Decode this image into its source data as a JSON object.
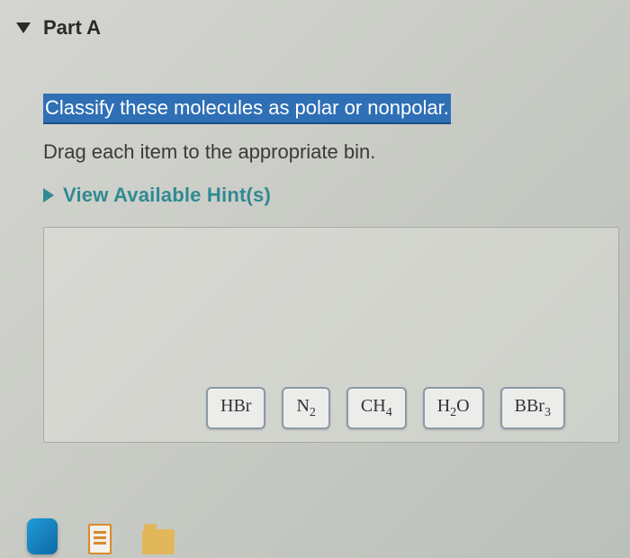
{
  "part": {
    "label": "Part A"
  },
  "question": {
    "prompt_selected": "Classify these molecules as polar or nonpolar.",
    "instructions": "Drag each item to the appropriate bin.",
    "hints_label": "View Available Hint(s)"
  },
  "molecules": [
    {
      "formula": "HBr",
      "base": "HBr",
      "sub": ""
    },
    {
      "formula": "N2",
      "base": "N",
      "sub": "2"
    },
    {
      "formula": "CH4",
      "base": "CH",
      "sub": "4"
    },
    {
      "formula": "H2O",
      "base": "H",
      "sub": "2",
      "tail": "O"
    },
    {
      "formula": "BBr3",
      "base": "BBr",
      "sub": "3"
    }
  ],
  "colors": {
    "selection_bg": "#2f6fb5",
    "hint_color": "#2f8a92",
    "chip_border": "#8a9aa4"
  }
}
